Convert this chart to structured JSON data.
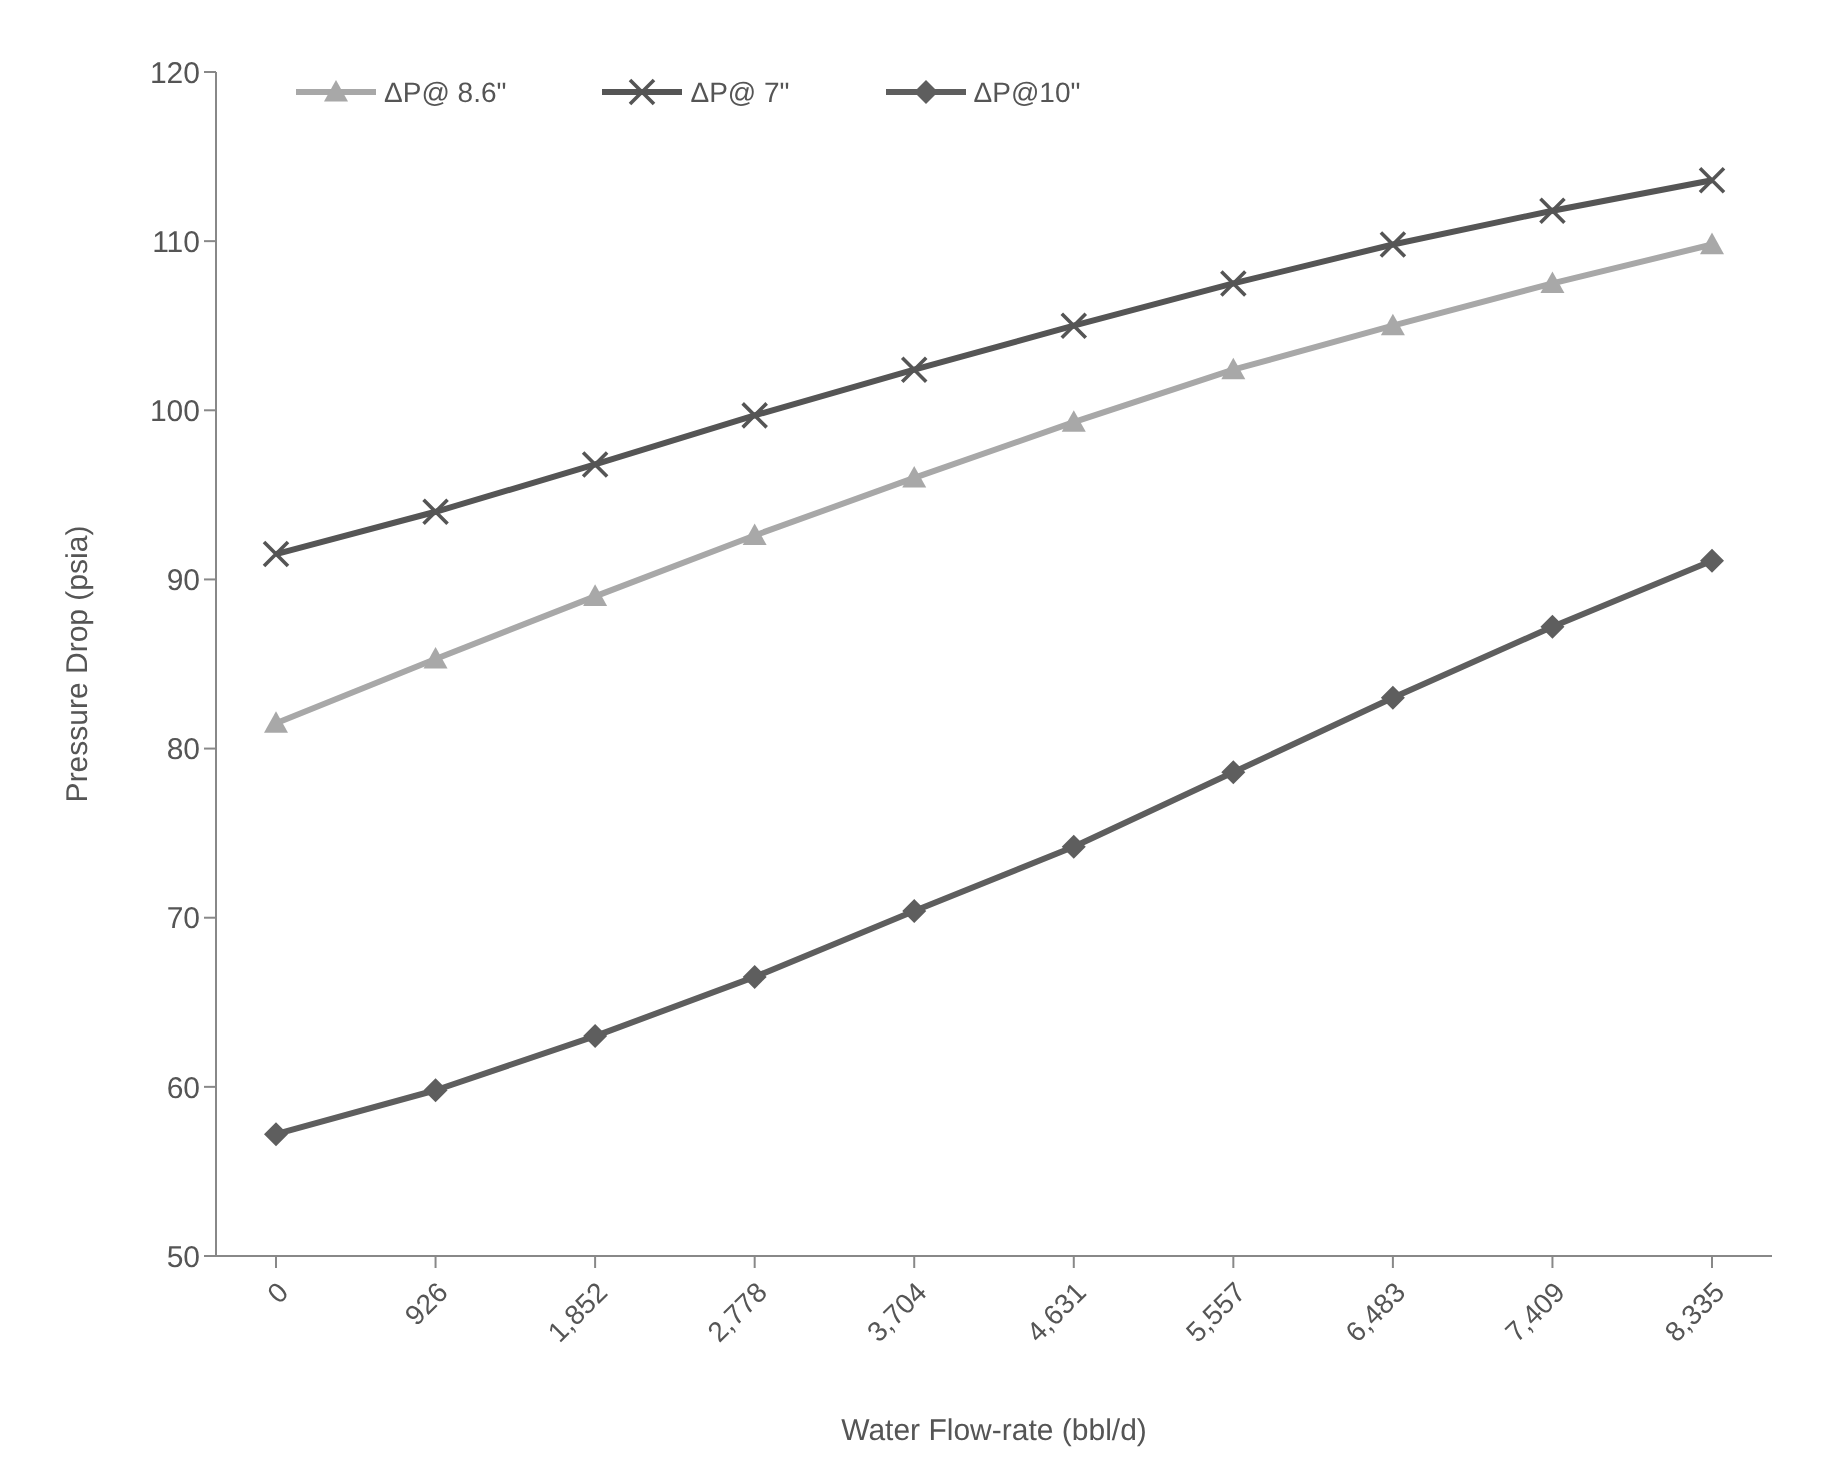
{
  "chart_data": {
    "type": "line",
    "xlabel": "Water Flow-rate (bbl/d)",
    "ylabel": "Pressure Drop (psia)",
    "categories": [
      "0",
      "926",
      "1,852",
      "2,778",
      "3,704",
      "4,631",
      "5,557",
      "6,483",
      "7,409",
      "8,335"
    ],
    "ylim": [
      50,
      120
    ],
    "yticks": [
      50,
      60,
      70,
      80,
      90,
      100,
      110,
      120
    ],
    "grid": false,
    "legend": "top",
    "series": [
      {
        "name": "ΔP@ 8.6\"",
        "color": "#a8a8a8",
        "marker": "triangle",
        "values": [
          81.5,
          85.3,
          89,
          92.6,
          96,
          99.3,
          102.4,
          105,
          107.5,
          109.8
        ]
      },
      {
        "name": "ΔP@ 7\"",
        "color": "#555555",
        "marker": "cross",
        "values": [
          91.5,
          94,
          96.8,
          99.7,
          102.4,
          105,
          107.5,
          109.8,
          111.8,
          113.6
        ]
      },
      {
        "name": "ΔP@10\"",
        "color": "#5e5e5e",
        "marker": "diamond",
        "values": [
          57.2,
          59.8,
          63,
          66.5,
          70.4,
          74.2,
          78.6,
          83,
          87.2,
          91.1
        ]
      }
    ]
  }
}
